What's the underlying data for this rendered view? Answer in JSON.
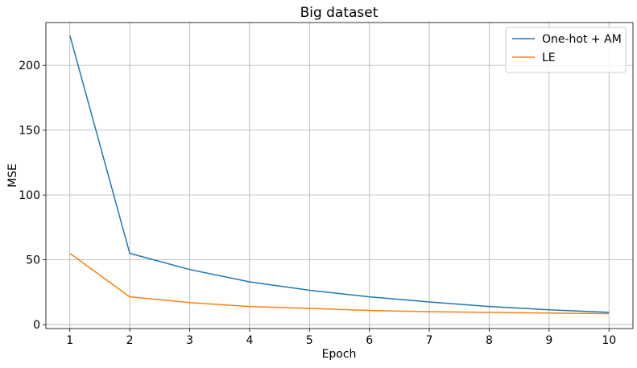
{
  "chart_data": {
    "type": "line",
    "title": "Big dataset",
    "xlabel": "Epoch",
    "ylabel": "MSE",
    "x": [
      1,
      2,
      3,
      4,
      5,
      6,
      7,
      8,
      9,
      10
    ],
    "xlim": [
      0.6,
      10.4
    ],
    "ylim": [
      -3,
      233
    ],
    "xticks": [
      1,
      2,
      3,
      4,
      5,
      6,
      7,
      8,
      9,
      10
    ],
    "yticks": [
      0,
      50,
      100,
      150,
      200
    ],
    "grid": true,
    "legend_position": "top-right",
    "series": [
      {
        "name": "One-hot + AM",
        "color": "#1f77b4",
        "values": [
          223,
          55,
          42.5,
          33,
          26.5,
          21.5,
          17.5,
          14,
          11.5,
          9.5
        ]
      },
      {
        "name": "LE",
        "color": "#ff7f0e",
        "values": [
          55,
          21.5,
          17,
          14,
          12.5,
          11,
          10,
          9.5,
          9,
          8.5
        ]
      }
    ]
  }
}
